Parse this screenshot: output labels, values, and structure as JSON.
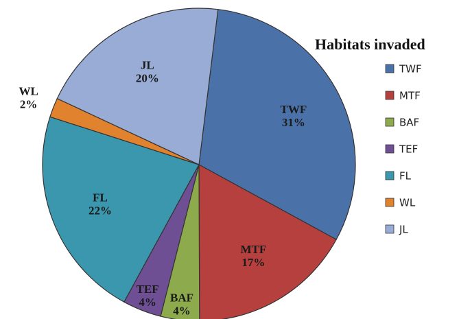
{
  "chart_data": {
    "type": "pie",
    "legend_title": "Habitats invaded",
    "legend_position": "right",
    "categories": [
      "TWF",
      "MTF",
      "BAF",
      "TEF",
      "FL",
      "WL",
      "JL"
    ],
    "values": [
      31,
      17,
      4,
      4,
      22,
      2,
      20
    ],
    "value_labels": [
      "31%",
      "17%",
      "4%",
      "4%",
      "22%",
      "2%",
      "20%"
    ],
    "colors": [
      "#4a72a8",
      "#b5403e",
      "#8dab4c",
      "#6e4f94",
      "#3b97ad",
      "#e0822e",
      "#98acd6"
    ]
  }
}
